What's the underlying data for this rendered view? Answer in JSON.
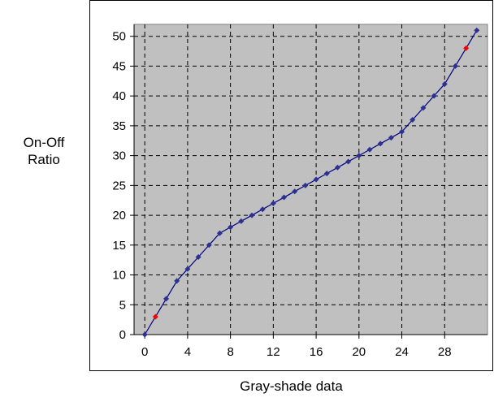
{
  "chart_data": {
    "type": "line",
    "title": "",
    "xlabel": "Gray-shade data",
    "ylabel": [
      "On-Off",
      "Ratio"
    ],
    "xlim": [
      -1,
      32
    ],
    "ylim": [
      0,
      52
    ],
    "xticks": [
      0,
      4,
      8,
      12,
      16,
      20,
      24,
      28
    ],
    "yticks": [
      0,
      5,
      10,
      15,
      20,
      25,
      30,
      35,
      40,
      45,
      50
    ],
    "grid": true,
    "plot_background": "#c0c0c0",
    "series": [
      {
        "color": "#000080",
        "marker_color": "#2e3192",
        "highlight_color": "#ff0000",
        "x": [
          0,
          1,
          2,
          3,
          4,
          5,
          6,
          7,
          8,
          9,
          10,
          11,
          12,
          13,
          14,
          15,
          16,
          17,
          18,
          19,
          20,
          21,
          22,
          23,
          24,
          25,
          26,
          27,
          28,
          29,
          30,
          31
        ],
        "y": [
          0,
          3,
          6,
          9,
          11,
          13,
          15,
          17,
          18,
          19,
          20,
          21,
          22,
          23,
          24,
          25,
          26,
          27,
          28,
          29,
          30,
          31,
          32,
          33,
          34,
          36,
          38,
          40,
          42,
          45,
          48,
          51
        ],
        "highlighted_x": [
          1,
          30
        ]
      }
    ]
  }
}
